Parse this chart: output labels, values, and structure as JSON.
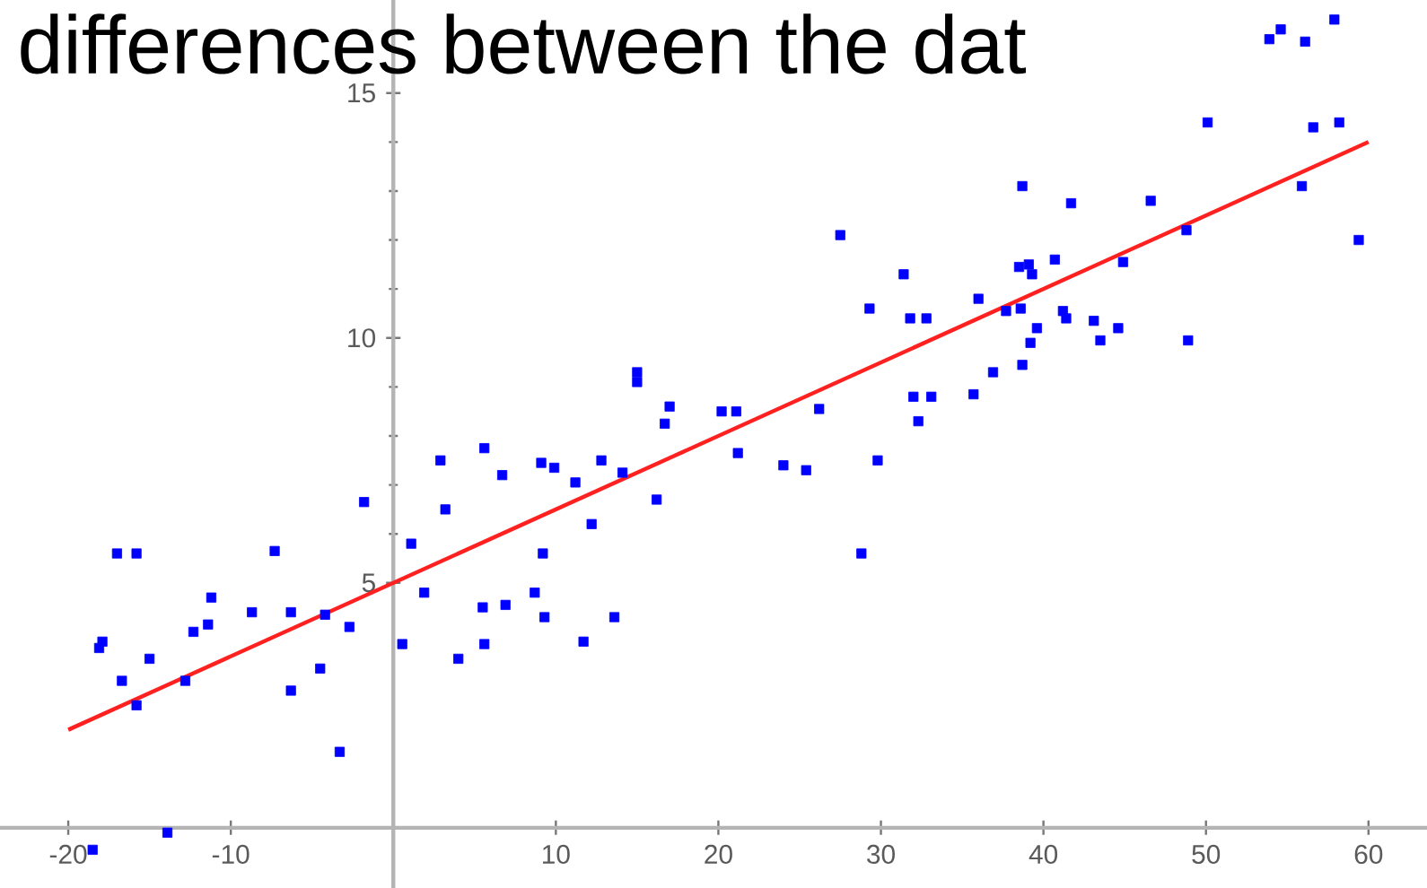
{
  "chart_data": {
    "type": "scatter",
    "title": "differences between the dat",
    "xlim": [
      -24.2,
      63.6
    ],
    "ylim": [
      -1.23,
      16.9
    ],
    "xticks": [
      -20,
      -10,
      10,
      20,
      30,
      40,
      50,
      60
    ],
    "yticks": [
      5,
      10,
      15
    ],
    "series": [
      {
        "color": "#0000ff",
        "marker": "square",
        "x": [
          -18.5,
          -18.1,
          -17.9,
          -17.0,
          -15.8,
          -16.7,
          -15.0,
          -15.8,
          -13.9,
          -12.8,
          -12.3,
          -11.4,
          -11.2,
          -8.7,
          -7.3,
          -6.3,
          -6.3,
          -4.5,
          -4.2,
          -3.3,
          -2.7,
          -1.8,
          0.55,
          1.1,
          1.9,
          2.9,
          3.2,
          4.0,
          5.5,
          5.6,
          5.6,
          6.7,
          6.9,
          8.7,
          9.1,
          9.2,
          9.3,
          9.9,
          11.2,
          11.7,
          12.2,
          12.8,
          13.6,
          14.1,
          15.0,
          15.0,
          16.2,
          16.7,
          17.0,
          20.2,
          21.1,
          21.2,
          24.0,
          25.4,
          26.2,
          27.5,
          28.8,
          29.3,
          29.8,
          31.4,
          31.8,
          32.0,
          32.3,
          32.8,
          33.1,
          35.7,
          36.0,
          36.9,
          37.7,
          38.5,
          38.6,
          38.7,
          38.7,
          39.1,
          39.2,
          39.3,
          39.6,
          40.7,
          41.2,
          41.4,
          41.7,
          43.1,
          43.5,
          44.6,
          44.9,
          46.6,
          48.8,
          48.9,
          50.1,
          53.9,
          54.6,
          55.9,
          56.1,
          56.6,
          57.9,
          58.2,
          59.4
        ],
        "values": [
          -0.45,
          3.67,
          3.8,
          5.6,
          5.6,
          3.0,
          3.45,
          2.5,
          -0.1,
          3.0,
          4.0,
          4.15,
          4.7,
          4.4,
          5.65,
          4.4,
          2.8,
          3.25,
          4.35,
          1.55,
          4.1,
          6.65,
          3.75,
          5.8,
          4.8,
          7.5,
          6.5,
          3.45,
          4.5,
          7.75,
          3.75,
          7.2,
          4.55,
          4.8,
          7.45,
          5.6,
          4.3,
          7.35,
          7.05,
          3.8,
          6.2,
          7.5,
          4.3,
          7.25,
          9.3,
          9.1,
          6.7,
          8.25,
          8.6,
          8.5,
          8.5,
          7.65,
          7.4,
          7.3,
          8.55,
          12.1,
          5.6,
          10.6,
          7.5,
          11.3,
          10.4,
          8.8,
          8.3,
          10.4,
          8.8,
          8.85,
          10.8,
          9.3,
          10.55,
          11.45,
          10.6,
          9.45,
          13.1,
          11.5,
          9.9,
          11.3,
          10.2,
          11.6,
          10.55,
          10.4,
          12.75,
          10.35,
          9.95,
          10.2,
          11.55,
          12.8,
          12.2,
          9.95,
          14.4,
          16.1,
          16.3,
          13.1,
          16.05,
          14.3,
          16.5,
          14.4,
          12.0
        ]
      },
      {
        "type": "line",
        "color": "#ff2020",
        "x": [
          -20,
          60
        ],
        "values": [
          2.0,
          14.0
        ]
      }
    ]
  }
}
